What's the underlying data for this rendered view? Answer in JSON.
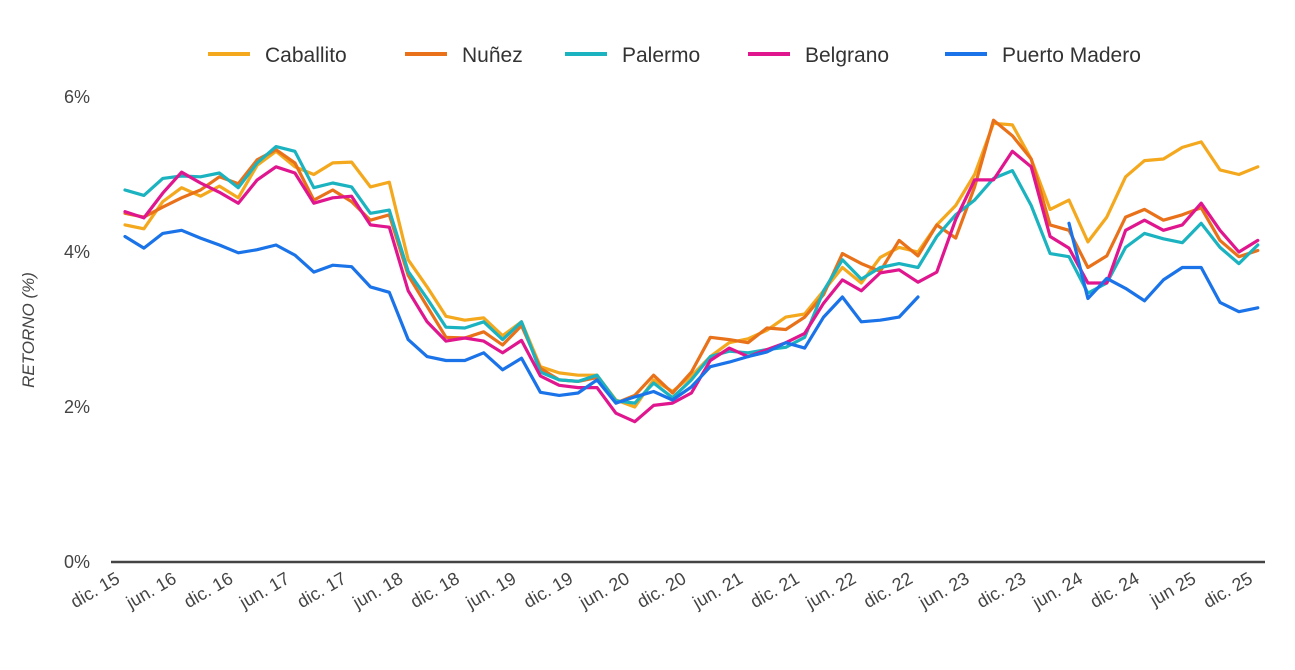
{
  "chart_data": {
    "type": "line",
    "title": "",
    "xlabel": "",
    "ylabel": "RETORNO (%)",
    "ylim": [
      0,
      6
    ],
    "yticks": [
      "0%",
      "2%",
      "4%",
      "6%"
    ],
    "ytick_values": [
      0,
      2,
      4,
      6
    ],
    "grid": false,
    "legend_position": "top",
    "xtick_labels": [
      "dic. 15",
      "jun. 16",
      "dic. 16",
      "jun. 17",
      "dic. 17",
      "jun. 18",
      "dic. 18",
      "jun. 19",
      "dic. 19",
      "jun. 20",
      "dic. 20",
      "jun. 21",
      "dic. 21",
      "jun. 22",
      "dic. 22",
      "jun. 23",
      "dic. 23",
      "jun. 24",
      "dic. 24",
      "jun 25",
      "dic. 25"
    ],
    "xtick_dates": [
      "2015-12",
      "2016-06",
      "2016-12",
      "2017-06",
      "2017-12",
      "2018-06",
      "2018-12",
      "2019-06",
      "2019-12",
      "2020-06",
      "2020-12",
      "2021-06",
      "2021-12",
      "2022-06",
      "2022-12",
      "2023-06",
      "2023-12",
      "2024-06",
      "2024-12",
      "2025-06",
      "2025-12"
    ],
    "x": [
      "2015-12",
      "2016-02",
      "2016-04",
      "2016-06",
      "2016-08",
      "2016-10",
      "2016-12",
      "2017-02",
      "2017-04",
      "2017-06",
      "2017-08",
      "2017-10",
      "2017-12",
      "2018-02",
      "2018-04",
      "2018-06",
      "2018-08",
      "2018-10",
      "2018-12",
      "2019-02",
      "2019-04",
      "2019-06",
      "2019-08",
      "2019-10",
      "2019-12",
      "2020-02",
      "2020-04",
      "2020-06",
      "2020-08",
      "2020-10",
      "2020-12",
      "2021-02",
      "2021-04",
      "2021-06",
      "2021-08",
      "2021-10",
      "2021-12",
      "2022-02",
      "2022-04",
      "2022-06",
      "2022-08",
      "2022-10",
      "2022-12",
      "2023-02",
      "2023-04",
      "2023-06",
      "2023-08",
      "2023-10",
      "2023-12",
      "2024-02",
      "2024-04",
      "2024-06",
      "2024-08",
      "2024-10",
      "2024-12",
      "2025-02",
      "2025-04",
      "2025-06",
      "2025-08",
      "2025-10",
      "2025-12"
    ],
    "series": [
      {
        "name": "Caballito",
        "color": "#F4A81D",
        "values": [
          4.35,
          4.3,
          4.65,
          4.83,
          4.72,
          4.85,
          4.7,
          5.12,
          5.3,
          5.1,
          5.0,
          5.15,
          5.16,
          4.84,
          4.9,
          3.9,
          3.55,
          3.17,
          3.12,
          3.15,
          2.92,
          3.1,
          2.52,
          2.44,
          2.41,
          2.41,
          2.09,
          2.0,
          2.35,
          2.2,
          2.4,
          2.65,
          2.83,
          2.88,
          2.99,
          3.16,
          3.2,
          3.5,
          3.8,
          3.6,
          3.93,
          4.06,
          4.0,
          4.35,
          4.6,
          5.0,
          5.66,
          5.64,
          5.2,
          4.55,
          4.67,
          4.13,
          4.45,
          4.97,
          5.18,
          5.2,
          5.35,
          5.42,
          5.06,
          5.0,
          5.1
        ]
      },
      {
        "name": "Nuñez",
        "color": "#E8711A",
        "values": [
          4.5,
          4.45,
          4.58,
          4.7,
          4.8,
          4.97,
          4.88,
          5.19,
          5.32,
          5.15,
          4.67,
          4.8,
          4.65,
          4.41,
          4.48,
          3.7,
          3.3,
          2.9,
          2.89,
          2.97,
          2.8,
          3.05,
          2.5,
          2.35,
          2.33,
          2.38,
          2.05,
          2.15,
          2.41,
          2.18,
          2.45,
          2.9,
          2.87,
          2.83,
          3.02,
          3.0,
          3.16,
          3.45,
          3.98,
          3.85,
          3.75,
          4.15,
          3.95,
          4.35,
          4.18,
          4.84,
          5.7,
          5.5,
          5.2,
          4.35,
          4.28,
          3.8,
          3.95,
          4.45,
          4.55,
          4.41,
          4.48,
          4.57,
          4.15,
          3.94,
          4.02
        ]
      },
      {
        "name": "Palermo",
        "color": "#1BB3C0",
        "values": [
          4.8,
          4.73,
          4.95,
          4.98,
          4.97,
          5.02,
          4.83,
          5.15,
          5.36,
          5.3,
          4.83,
          4.89,
          4.84,
          4.5,
          4.54,
          3.75,
          3.4,
          3.03,
          3.02,
          3.1,
          2.87,
          3.1,
          2.45,
          2.35,
          2.33,
          2.41,
          2.08,
          2.05,
          2.31,
          2.12,
          2.35,
          2.65,
          2.72,
          2.7,
          2.74,
          2.77,
          2.9,
          3.5,
          3.9,
          3.65,
          3.8,
          3.85,
          3.8,
          4.2,
          4.48,
          4.67,
          4.95,
          5.05,
          4.6,
          3.98,
          3.94,
          3.47,
          3.6,
          4.06,
          4.24,
          4.17,
          4.12,
          4.37,
          4.06,
          3.85,
          4.09
        ]
      },
      {
        "name": "Belgrano",
        "color": "#E0168F",
        "values": [
          4.52,
          4.44,
          4.76,
          5.03,
          4.89,
          4.77,
          4.63,
          4.93,
          5.1,
          5.02,
          4.63,
          4.7,
          4.72,
          4.35,
          4.32,
          3.5,
          3.1,
          2.85,
          2.89,
          2.85,
          2.7,
          2.86,
          2.4,
          2.28,
          2.25,
          2.25,
          1.92,
          1.81,
          2.02,
          2.05,
          2.18,
          2.6,
          2.76,
          2.65,
          2.74,
          2.83,
          2.95,
          3.34,
          3.64,
          3.5,
          3.73,
          3.77,
          3.61,
          3.74,
          4.42,
          4.93,
          4.93,
          5.3,
          5.1,
          4.2,
          4.05,
          3.6,
          3.6,
          4.28,
          4.41,
          4.28,
          4.35,
          4.63,
          4.28,
          4.0,
          4.15
        ]
      },
      {
        "name": "Puerto Madero",
        "color": "#1A73E8",
        "values": [
          4.2,
          4.05,
          4.24,
          4.28,
          4.18,
          4.09,
          3.99,
          4.03,
          4.09,
          3.96,
          3.74,
          3.83,
          3.81,
          3.55,
          3.48,
          2.87,
          2.65,
          2.6,
          2.6,
          2.7,
          2.48,
          2.63,
          2.19,
          2.15,
          2.18,
          2.35,
          2.05,
          2.13,
          2.2,
          2.09,
          2.26,
          2.52,
          2.58,
          2.65,
          2.71,
          2.83,
          2.76,
          3.16,
          3.42,
          3.1,
          3.12,
          3.16,
          3.42,
          null,
          null,
          null,
          null,
          null,
          null,
          null,
          4.37,
          3.4,
          3.66,
          3.53,
          3.37,
          3.64,
          3.8,
          3.8,
          3.35,
          3.23,
          3.28
        ]
      }
    ]
  }
}
